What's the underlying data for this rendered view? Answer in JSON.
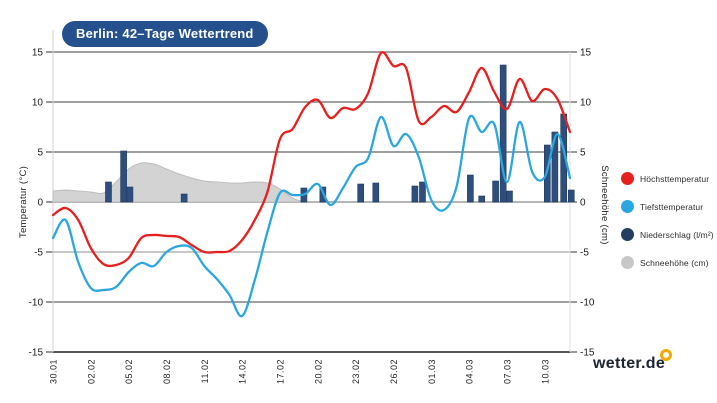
{
  "title": "Berlin: 42–Tage Wettertrend",
  "title_bg_color": "#24508e",
  "brand": {
    "logo_text": "wetter.de",
    "logo_color": "#1c2433",
    "dot_color": "#f6a800"
  },
  "chart_data": {
    "type": "line+bar+area",
    "num_days": 42,
    "ylim": [
      -15,
      15
    ],
    "y_ticks": [
      15,
      10,
      5,
      0,
      -5,
      -10,
      -15
    ],
    "ylabel_left": "Temperatur (°C)",
    "ylabel_right": "Schneehöhe (cm)",
    "x_tick_labels": [
      "30.01",
      "02.02",
      "05.02",
      "08.02",
      "11.02",
      "14.02",
      "17.02",
      "20.02",
      "23.02",
      "26.02",
      "01.03",
      "04.03",
      "07.03",
      "10.03"
    ],
    "x_tick_days": [
      0,
      3,
      6,
      9,
      12,
      15,
      18,
      21,
      24,
      27,
      30,
      33,
      36,
      39
    ],
    "grid": "horizontal",
    "series": [
      {
        "name": "Höchsttemperatur",
        "type": "line",
        "color": "#e5201f",
        "values": [
          -1.3,
          -0.6,
          -1.8,
          -4.6,
          -6.2,
          -6.3,
          -5.6,
          -3.6,
          -3.3,
          -3.4,
          -3.5,
          -4.3,
          -5.0,
          -5.0,
          -4.9,
          -3.8,
          -1.8,
          1.0,
          6.3,
          7.3,
          9.5,
          10.2,
          8.4,
          9.4,
          9.3,
          10.9,
          14.9,
          13.6,
          13.4,
          8.1,
          8.5,
          9.6,
          9.0,
          11.0,
          13.4,
          11.0,
          9.3,
          12.3,
          10.1,
          11.3,
          10.3,
          7.0
        ]
      },
      {
        "name": "Tiefsttemperatur",
        "type": "line",
        "color": "#2ba6e0",
        "values": [
          -3.6,
          -1.8,
          -6.0,
          -8.6,
          -8.8,
          -8.5,
          -7.0,
          -6.1,
          -6.4,
          -5.0,
          -4.4,
          -4.6,
          -6.4,
          -7.7,
          -9.3,
          -11.4,
          -7.8,
          -3.0,
          0.9,
          0.7,
          0.8,
          1.8,
          -0.3,
          1.4,
          3.5,
          4.4,
          8.5,
          5.6,
          6.8,
          4.5,
          0.2,
          -0.8,
          1.5,
          8.4,
          7.0,
          7.8,
          2.0,
          8.0,
          3.0,
          2.5,
          6.8,
          2.4
        ]
      },
      {
        "name": "Niederschlag (l/m²)",
        "type": "bar",
        "color": "#2e4f7d",
        "points": [
          [
            4.4,
            2.0
          ],
          [
            5.6,
            5.1
          ],
          [
            6.1,
            1.5
          ],
          [
            10.4,
            0.8
          ],
          [
            19.9,
            1.4
          ],
          [
            21.4,
            1.5
          ],
          [
            24.4,
            1.8
          ],
          [
            25.6,
            1.9
          ],
          [
            28.7,
            1.6
          ],
          [
            29.3,
            2.0
          ],
          [
            33.1,
            2.7
          ],
          [
            34.0,
            0.6
          ],
          [
            35.1,
            2.1
          ],
          [
            35.7,
            13.7
          ],
          [
            36.2,
            1.1
          ],
          [
            39.2,
            5.7
          ],
          [
            39.8,
            7.0
          ],
          [
            40.5,
            8.8
          ],
          [
            41.1,
            1.2
          ]
        ]
      },
      {
        "name": "Schneehöhe (cm)",
        "type": "area",
        "color": "#d3d3d3",
        "stroke": "#bdbdbd",
        "values": [
          1.1,
          1.2,
          1.1,
          1.0,
          0.9,
          2.0,
          3.3,
          3.9,
          3.8,
          3.3,
          2.8,
          2.4,
          2.1,
          2.0,
          1.9,
          1.9,
          2.0,
          1.9,
          1.3,
          0.4,
          0,
          0,
          0,
          0,
          0,
          0,
          0,
          0,
          0,
          0,
          0,
          0,
          0,
          0,
          0,
          0,
          0,
          0,
          0,
          0,
          0,
          0
        ]
      }
    ],
    "legend": [
      {
        "label": "Höchsttemperatur",
        "color": "#e5201f"
      },
      {
        "label": "Tiefsttemperatur",
        "color": "#2ba6e0"
      },
      {
        "label": "Niederschlag (l/m²)",
        "color": "#223e60"
      },
      {
        "label": "Schneehöhe (cm)",
        "color": "#c7c7c7"
      }
    ],
    "legend_position": "right"
  }
}
